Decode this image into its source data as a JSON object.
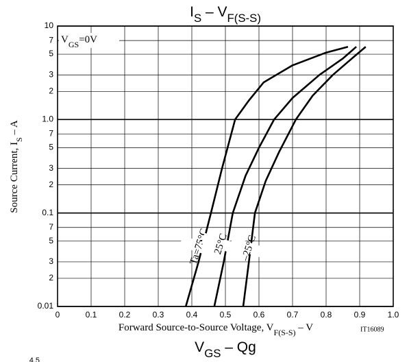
{
  "chart_data": {
    "type": "line",
    "title_parts": [
      "I",
      "S",
      " – V",
      "F(S-S)"
    ],
    "xlabel_parts": [
      "Forward Source-to-Source Voltage, V",
      "F(S-S)",
      " – V"
    ],
    "ylabel_parts": [
      "Source Current, I",
      "S",
      " – A"
    ],
    "annotation_parts": [
      "V",
      "GS",
      "=0V"
    ],
    "code": "IT16089",
    "log_y": true,
    "grid": true,
    "color": "#000000",
    "xlim": [
      0,
      1.0
    ],
    "ylim": [
      0.01,
      10
    ],
    "xticks": [
      0,
      0.1,
      0.2,
      0.3,
      0.4,
      0.5,
      0.6,
      0.7,
      0.8,
      0.9,
      {
        "value": 1.0,
        "label": "1.0"
      }
    ],
    "yticks": [
      0.01,
      {
        "value": 0.02,
        "label": "2"
      },
      {
        "value": 0.03,
        "label": "3"
      },
      {
        "value": 0.05,
        "label": "5"
      },
      {
        "value": 0.07,
        "label": "7"
      },
      0.1,
      {
        "value": 0.2,
        "label": "2"
      },
      {
        "value": 0.3,
        "label": "3"
      },
      {
        "value": 0.5,
        "label": "5"
      },
      {
        "value": 0.7,
        "label": "7"
      },
      {
        "value": 1.0,
        "label": "1.0"
      },
      {
        "value": 2,
        "label": "2"
      },
      {
        "value": 3,
        "label": "3"
      },
      {
        "value": 5,
        "label": "5"
      },
      {
        "value": 7,
        "label": "7"
      },
      10
    ],
    "series": [
      {
        "name": "Ta=75°C",
        "x": [
          0.382,
          0.42,
          0.457,
          0.49,
          0.529,
          0.57,
          0.614,
          0.7,
          0.8,
          0.865
        ],
        "y": [
          0.01,
          0.03,
          0.1,
          0.3,
          1.0,
          1.6,
          2.5,
          3.8,
          5.2,
          6.0
        ]
      },
      {
        "name": "25°C",
        "x": [
          0.467,
          0.495,
          0.522,
          0.56,
          0.6,
          0.645,
          0.7,
          0.78,
          0.85,
          0.89
        ],
        "y": [
          0.01,
          0.03,
          0.1,
          0.25,
          0.5,
          1.0,
          1.7,
          3,
          4.5,
          6
        ]
      },
      {
        "name": "–25°C",
        "x": [
          0.553,
          0.57,
          0.588,
          0.62,
          0.66,
          0.71,
          0.76,
          0.82,
          0.88,
          0.918
        ],
        "y": [
          0.01,
          0.03,
          0.1,
          0.22,
          0.45,
          1.0,
          1.8,
          3,
          4.6,
          6
        ]
      }
    ]
  },
  "next_chart": {
    "title_parts": [
      "V",
      "GS",
      " – Qg"
    ],
    "ytick": "4.5"
  }
}
